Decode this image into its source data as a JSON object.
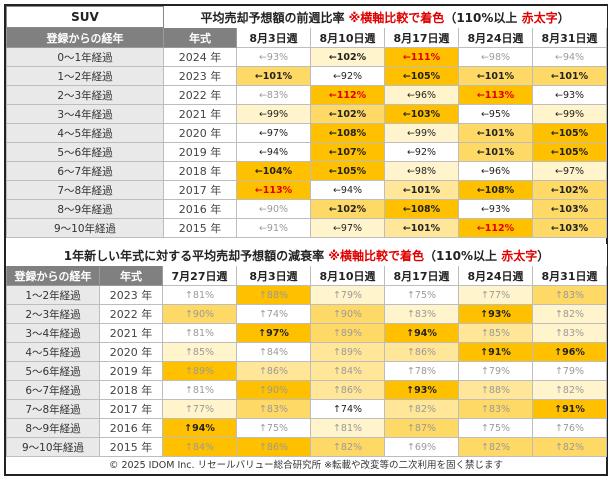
{
  "table1": {
    "category": "SUV",
    "title_prefix": "平均売却予想額の前週比率",
    "title_note_red": "※横軸比較で着色",
    "title_note_paren": "（110%以上",
    "title_note_red2": "赤太字",
    "title_note_end": "）",
    "col_headers": [
      "登録からの経年",
      "年式",
      "8月3日週",
      "8月10日週",
      "8月17日週",
      "8月24日週",
      "8月31日週"
    ],
    "rows": [
      {
        "label": "0～1年経過",
        "year": "2024 年",
        "cells": [
          {
            "text": "←93%",
            "bg": "#ffffff",
            "style": "light"
          },
          {
            "text": "←102%",
            "bg": "#fff4cc",
            "style": "bold"
          },
          {
            "text": "←111%",
            "bg": "#ffc000",
            "style": "redbold"
          },
          {
            "text": "←98%",
            "bg": "#ffffff",
            "style": "light"
          },
          {
            "text": "←94%",
            "bg": "#ffffff",
            "style": "light"
          }
        ]
      },
      {
        "label": "1～2年経過",
        "year": "2023 年",
        "cells": [
          {
            "text": "←101%",
            "bg": "#ffd966",
            "style": "bold"
          },
          {
            "text": "←92%",
            "bg": "#ffffff",
            "style": ""
          },
          {
            "text": "←105%",
            "bg": "#ffc000",
            "style": "bold"
          },
          {
            "text": "←101%",
            "bg": "#ffd966",
            "style": "bold"
          },
          {
            "text": "←101%",
            "bg": "#ffd966",
            "style": "bold"
          }
        ]
      },
      {
        "label": "2～3年経過",
        "year": "2022 年",
        "cells": [
          {
            "text": "←83%",
            "bg": "#ffffff",
            "style": "light"
          },
          {
            "text": "←112%",
            "bg": "#ffc000",
            "style": "redbold"
          },
          {
            "text": "←96%",
            "bg": "#fff4cc",
            "style": ""
          },
          {
            "text": "←113%",
            "bg": "#ffc000",
            "style": "redbold"
          },
          {
            "text": "←93%",
            "bg": "#ffffff",
            "style": ""
          }
        ]
      },
      {
        "label": "3～4年経過",
        "year": "2021 年",
        "cells": [
          {
            "text": "←99%",
            "bg": "#fff4cc",
            "style": ""
          },
          {
            "text": "←102%",
            "bg": "#ffd966",
            "style": "bold"
          },
          {
            "text": "←103%",
            "bg": "#ffc000",
            "style": "bold"
          },
          {
            "text": "←95%",
            "bg": "#ffffff",
            "style": ""
          },
          {
            "text": "←99%",
            "bg": "#fff4cc",
            "style": ""
          }
        ]
      },
      {
        "label": "4～5年経過",
        "year": "2020 年",
        "cells": [
          {
            "text": "←97%",
            "bg": "#ffffff",
            "style": ""
          },
          {
            "text": "←108%",
            "bg": "#ffc000",
            "style": "bold"
          },
          {
            "text": "←99%",
            "bg": "#fff4cc",
            "style": ""
          },
          {
            "text": "←101%",
            "bg": "#ffd966",
            "style": "bold"
          },
          {
            "text": "←105%",
            "bg": "#ffc000",
            "style": "bold"
          }
        ]
      },
      {
        "label": "5～6年経過",
        "year": "2019 年",
        "cells": [
          {
            "text": "←94%",
            "bg": "#ffffff",
            "style": ""
          },
          {
            "text": "←107%",
            "bg": "#ffc000",
            "style": "bold"
          },
          {
            "text": "←92%",
            "bg": "#ffffff",
            "style": ""
          },
          {
            "text": "←101%",
            "bg": "#ffd966",
            "style": "bold"
          },
          {
            "text": "←105%",
            "bg": "#ffc000",
            "style": "bold"
          }
        ]
      },
      {
        "label": "6～7年経過",
        "year": "2018 年",
        "cells": [
          {
            "text": "←104%",
            "bg": "#ffc000",
            "style": "bold"
          },
          {
            "text": "←105%",
            "bg": "#ffc000",
            "style": "bold"
          },
          {
            "text": "←98%",
            "bg": "#fff4cc",
            "style": ""
          },
          {
            "text": "←96%",
            "bg": "#ffffff",
            "style": ""
          },
          {
            "text": "←97%",
            "bg": "#fff4cc",
            "style": ""
          }
        ]
      },
      {
        "label": "7～8年経過",
        "year": "2017 年",
        "cells": [
          {
            "text": "←113%",
            "bg": "#ffc000",
            "style": "redbold"
          },
          {
            "text": "←94%",
            "bg": "#ffffff",
            "style": ""
          },
          {
            "text": "←101%",
            "bg": "#ffe699",
            "style": "bold"
          },
          {
            "text": "←108%",
            "bg": "#ffc000",
            "style": "bold"
          },
          {
            "text": "←102%",
            "bg": "#ffd966",
            "style": "bold"
          }
        ]
      },
      {
        "label": "8～9年経過",
        "year": "2016 年",
        "cells": [
          {
            "text": "←90%",
            "bg": "#ffffff",
            "style": "light"
          },
          {
            "text": "←102%",
            "bg": "#ffd966",
            "style": "bold"
          },
          {
            "text": "←108%",
            "bg": "#ffc000",
            "style": "bold"
          },
          {
            "text": "←93%",
            "bg": "#ffffff",
            "style": ""
          },
          {
            "text": "←103%",
            "bg": "#ffd966",
            "style": "bold"
          }
        ]
      },
      {
        "label": "9～10年経過",
        "year": "2015 年",
        "cells": [
          {
            "text": "←91%",
            "bg": "#ffffff",
            "style": "light"
          },
          {
            "text": "←97%",
            "bg": "#fff4cc",
            "style": ""
          },
          {
            "text": "←101%",
            "bg": "#ffe699",
            "style": "bold"
          },
          {
            "text": "←112%",
            "bg": "#ffc000",
            "style": "redbold"
          },
          {
            "text": "←103%",
            "bg": "#ffd966",
            "style": "bold"
          }
        ]
      }
    ]
  },
  "table2": {
    "title_prefix": "1年新しい年式に対する平均売却予想額の減衰率",
    "title_note_red": "※横軸比較で着色",
    "title_note_paren": "（110%以上",
    "title_note_red2": "赤太字",
    "title_note_end": "）",
    "col_headers": [
      "登録からの経年",
      "年式",
      "7月27日週",
      "8月3日週",
      "8月10日週",
      "8月17日週",
      "8月24日週",
      "8月31日週"
    ],
    "rows": [
      {
        "label": "1～2年経過",
        "year": "2023 年",
        "cells": [
          {
            "text": "↑81%",
            "bg": "#ffffff",
            "style": "light"
          },
          {
            "text": "↑88%",
            "bg": "#ffc000",
            "style": "light"
          },
          {
            "text": "↑79%",
            "bg": "#fff4cc",
            "style": "light"
          },
          {
            "text": "↑75%",
            "bg": "#ffffff",
            "style": "light"
          },
          {
            "text": "↑77%",
            "bg": "#fff4cc",
            "style": "light"
          },
          {
            "text": "↑83%",
            "bg": "#ffd966",
            "style": "light"
          }
        ]
      },
      {
        "label": "2～3年経過",
        "year": "2022 年",
        "cells": [
          {
            "text": "↑90%",
            "bg": "#ffd966",
            "style": "light"
          },
          {
            "text": "↑74%",
            "bg": "#ffffff",
            "style": "light"
          },
          {
            "text": "↑90%",
            "bg": "#ffd966",
            "style": "light"
          },
          {
            "text": "↑83%",
            "bg": "#fff4cc",
            "style": "light"
          },
          {
            "text": "↑93%",
            "bg": "#ffc000",
            "style": "bold"
          },
          {
            "text": "↑82%",
            "bg": "#fff4cc",
            "style": "light"
          }
        ]
      },
      {
        "label": "3～4年経過",
        "year": "2021 年",
        "cells": [
          {
            "text": "↑81%",
            "bg": "#ffffff",
            "style": "light"
          },
          {
            "text": "↑97%",
            "bg": "#ffc000",
            "style": "bold"
          },
          {
            "text": "↑89%",
            "bg": "#ffd966",
            "style": "light"
          },
          {
            "text": "↑94%",
            "bg": "#ffc000",
            "style": "bold"
          },
          {
            "text": "↑85%",
            "bg": "#ffe699",
            "style": "light"
          },
          {
            "text": "↑83%",
            "bg": "#fff4cc",
            "style": "light"
          }
        ]
      },
      {
        "label": "4～5年経過",
        "year": "2020 年",
        "cells": [
          {
            "text": "↑85%",
            "bg": "#fff4cc",
            "style": "light"
          },
          {
            "text": "↑84%",
            "bg": "#ffffff",
            "style": "light"
          },
          {
            "text": "↑89%",
            "bg": "#ffe699",
            "style": "light"
          },
          {
            "text": "↑86%",
            "bg": "#ffe699",
            "style": "light"
          },
          {
            "text": "↑91%",
            "bg": "#ffc000",
            "style": "bold"
          },
          {
            "text": "↑96%",
            "bg": "#ffc000",
            "style": "bold"
          }
        ]
      },
      {
        "label": "5～6年経過",
        "year": "2019 年",
        "cells": [
          {
            "text": "↑89%",
            "bg": "#ffc000",
            "style": "light"
          },
          {
            "text": "↑86%",
            "bg": "#ffe699",
            "style": "light"
          },
          {
            "text": "↑84%",
            "bg": "#ffe699",
            "style": "light"
          },
          {
            "text": "↑78%",
            "bg": "#ffffff",
            "style": "light"
          },
          {
            "text": "↑79%",
            "bg": "#ffffff",
            "style": "light"
          },
          {
            "text": "↑79%",
            "bg": "#ffffff",
            "style": "light"
          }
        ]
      },
      {
        "label": "6～7年経過",
        "year": "2018 年",
        "cells": [
          {
            "text": "↑81%",
            "bg": "#ffffff",
            "style": "light"
          },
          {
            "text": "↑90%",
            "bg": "#ffc000",
            "style": "light"
          },
          {
            "text": "↑86%",
            "bg": "#ffe699",
            "style": "light"
          },
          {
            "text": "↑93%",
            "bg": "#ffc000",
            "style": "bold"
          },
          {
            "text": "↑88%",
            "bg": "#ffe699",
            "style": "light"
          },
          {
            "text": "↑82%",
            "bg": "#fff4cc",
            "style": "light"
          }
        ]
      },
      {
        "label": "7～8年経過",
        "year": "2017 年",
        "cells": [
          {
            "text": "↑77%",
            "bg": "#fff4cc",
            "style": "light"
          },
          {
            "text": "↑83%",
            "bg": "#ffd966",
            "style": "light"
          },
          {
            "text": "↑74%",
            "bg": "#ffffff",
            "style": ""
          },
          {
            "text": "↑82%",
            "bg": "#ffe699",
            "style": "light"
          },
          {
            "text": "↑83%",
            "bg": "#ffd966",
            "style": "light"
          },
          {
            "text": "↑91%",
            "bg": "#ffc000",
            "style": "bold"
          }
        ]
      },
      {
        "label": "8～9年経過",
        "year": "2016 年",
        "cells": [
          {
            "text": "↑94%",
            "bg": "#ffc000",
            "style": "bold"
          },
          {
            "text": "↑75%",
            "bg": "#ffffff",
            "style": "light"
          },
          {
            "text": "↑81%",
            "bg": "#fff4cc",
            "style": "light"
          },
          {
            "text": "↑87%",
            "bg": "#ffd966",
            "style": "light"
          },
          {
            "text": "↑75%",
            "bg": "#ffffff",
            "style": "light"
          },
          {
            "text": "↑76%",
            "bg": "#ffffff",
            "style": "light"
          }
        ]
      },
      {
        "label": "9～10年経過",
        "year": "2015 年",
        "cells": [
          {
            "text": "↑84%",
            "bg": "#ffc000",
            "style": "light"
          },
          {
            "text": "↑86%",
            "bg": "#ffc000",
            "style": "light"
          },
          {
            "text": "↑82%",
            "bg": "#ffd966",
            "style": "light"
          },
          {
            "text": "↑69%",
            "bg": "#ffffff",
            "style": "light"
          },
          {
            "text": "↑82%",
            "bg": "#ffd966",
            "style": "light"
          },
          {
            "text": "↑82%",
            "bg": "#ffd966",
            "style": "light"
          }
        ]
      }
    ]
  },
  "footer": "© 2025 IDOM Inc. リセールバリュー総合研究所 ※転載や改変等の二次利用を固く禁じます"
}
